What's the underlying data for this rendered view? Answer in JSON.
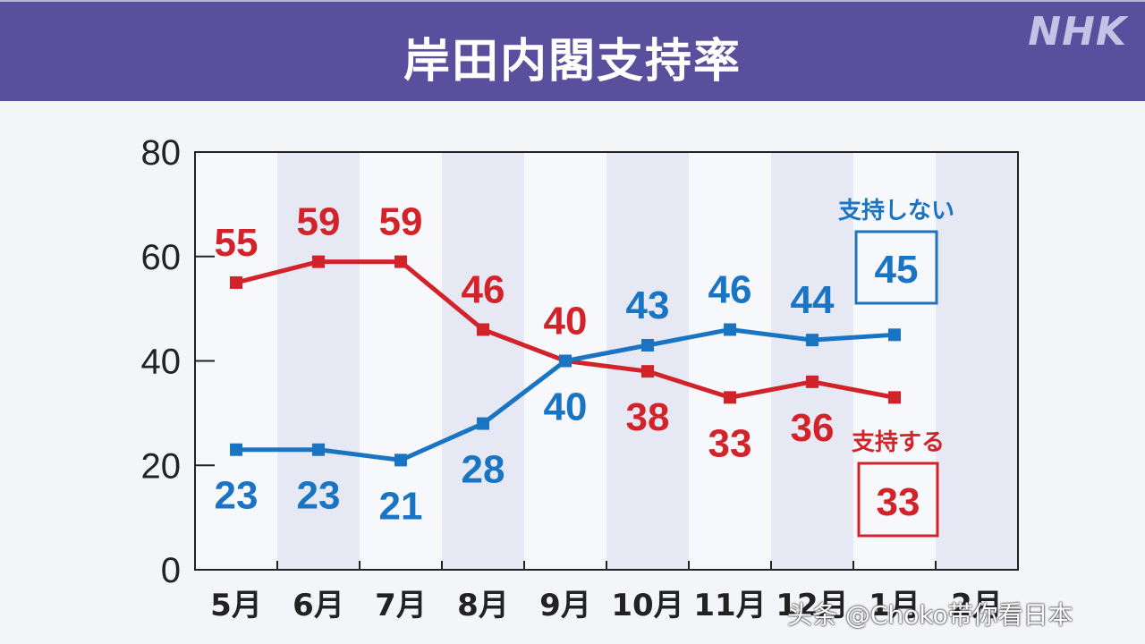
{
  "header": {
    "title": "岸田内閣支持率",
    "logo": "NHK"
  },
  "watermark": "头条 @Choko带你看日本",
  "colors": {
    "header_bg": "#5a4f9c",
    "support": "#d2232a",
    "not_support": "#1a74c4",
    "band": "#e6e9f3",
    "plot_bg": "#f7f8fb"
  },
  "legend": {
    "not_support_label": "支持しない",
    "not_support_latest": "45",
    "support_label": "支持する",
    "support_latest": "33"
  },
  "chart_data": {
    "type": "line",
    "title": "岸田内閣支持率",
    "xlabel": "",
    "ylabel": "",
    "ylim": [
      0,
      80
    ],
    "yticks": [
      0,
      20,
      40,
      60,
      80
    ],
    "grid": false,
    "categories": [
      "5月",
      "6月",
      "7月",
      "8月",
      "9月",
      "10月",
      "11月",
      "12月",
      "1月",
      "2月"
    ],
    "series": [
      {
        "name": "支持する",
        "color": "#d2232a",
        "values": [
          55,
          59,
          59,
          46,
          40,
          38,
          33,
          36,
          33,
          null
        ]
      },
      {
        "name": "支持しない",
        "color": "#1a74c4",
        "values": [
          23,
          23,
          21,
          28,
          40,
          43,
          46,
          44,
          45,
          null
        ]
      }
    ],
    "annotations": [
      {
        "text": "支持しない 45",
        "series": "支持しない",
        "boxed": true
      },
      {
        "text": "支持する 33",
        "series": "支持する",
        "boxed": true
      }
    ]
  }
}
